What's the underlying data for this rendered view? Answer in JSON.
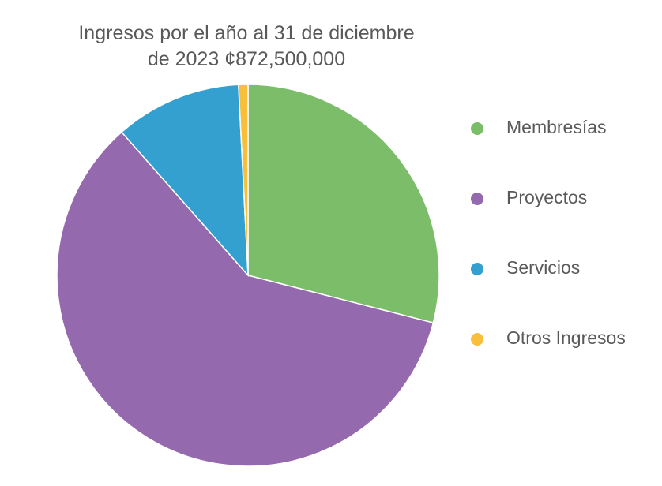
{
  "chart_data": {
    "type": "pie",
    "title_lines": [
      "Ingresos por el año al 31 de diciembre",
      "de 2023 ¢872,500,000"
    ],
    "categories": [
      "Membresías",
      "Proyectos",
      "Servicios",
      "Otros Ingresos"
    ],
    "values": [
      29,
      59.5,
      10.7,
      0.8
    ],
    "colors": [
      "#7bbd69",
      "#9469ae",
      "#33a0d0",
      "#f9bf3b"
    ],
    "start_angle_deg": 0,
    "direction": "clockwise",
    "legend_position": "right"
  }
}
